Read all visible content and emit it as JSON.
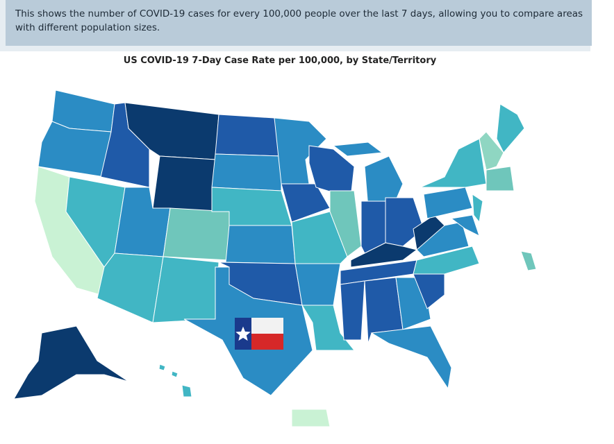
{
  "banner": {
    "text": "This shows the number of COVID-19 cases for every 100,000 people over the last 7 days, allowing you to compare areas with different population sizes."
  },
  "map": {
    "title": "US COVID-19 7-Day Case Rate per 100,000, by State/Territory"
  }
}
